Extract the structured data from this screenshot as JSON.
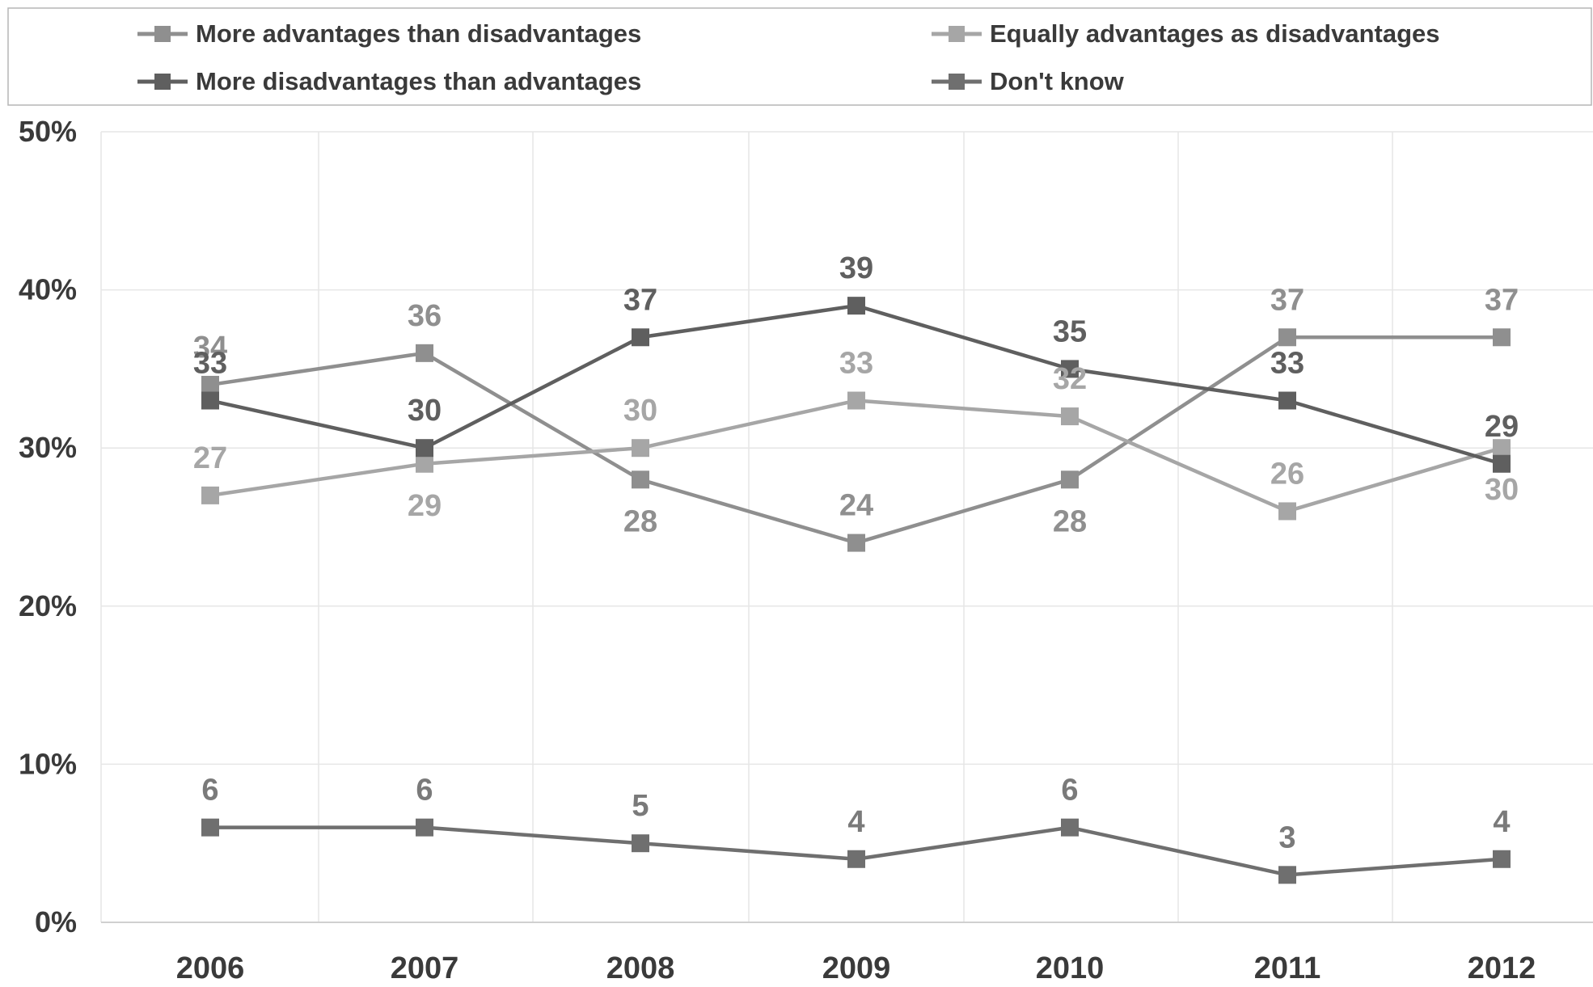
{
  "chart_data": {
    "type": "line",
    "title": "",
    "xlabel": "",
    "ylabel": "",
    "categories": [
      "2006",
      "2007",
      "2008",
      "2009",
      "2010",
      "2011",
      "2012"
    ],
    "ylim": [
      0,
      50
    ],
    "yticks": [
      "0%",
      "10%",
      "20%",
      "30%",
      "40%",
      "50%"
    ],
    "grid": true,
    "legend_position": "top",
    "series": [
      {
        "name": "More advantages than disadvantages",
        "values": [
          34,
          36,
          28,
          24,
          28,
          37,
          37
        ],
        "color": "#8f8f8f",
        "label_color": "#8f8f8f"
      },
      {
        "name": "Equally advantages as disadvantages",
        "values": [
          27,
          29,
          30,
          33,
          32,
          26,
          30
        ],
        "color": "#a6a6a6",
        "label_color": "#a6a6a6"
      },
      {
        "name": "More disadvantages than advantages",
        "values": [
          33,
          30,
          37,
          39,
          35,
          33,
          29
        ],
        "color": "#5f5f5f",
        "label_color": "#5f5f5f"
      },
      {
        "name": "Don't know",
        "values": [
          6,
          6,
          5,
          4,
          6,
          3,
          4
        ],
        "color": "#6f6f6f",
        "label_color": "#7a7a7a"
      }
    ],
    "point_labels": {
      "series_order": [
        "More advantages than disadvantages",
        "Equally advantages as disadvantages",
        "More disadvantages than advantages",
        "Don't know"
      ],
      "placement": [
        [
          "above",
          "above",
          "below",
          "above",
          "below",
          "above",
          "above"
        ],
        [
          "above",
          "below",
          "above",
          "above",
          "above",
          "above",
          "below"
        ],
        [
          "above",
          "above",
          "above",
          "above",
          "above",
          "above",
          "above"
        ],
        [
          "above",
          "above",
          "above",
          "above",
          "above",
          "above",
          "above"
        ]
      ]
    }
  }
}
